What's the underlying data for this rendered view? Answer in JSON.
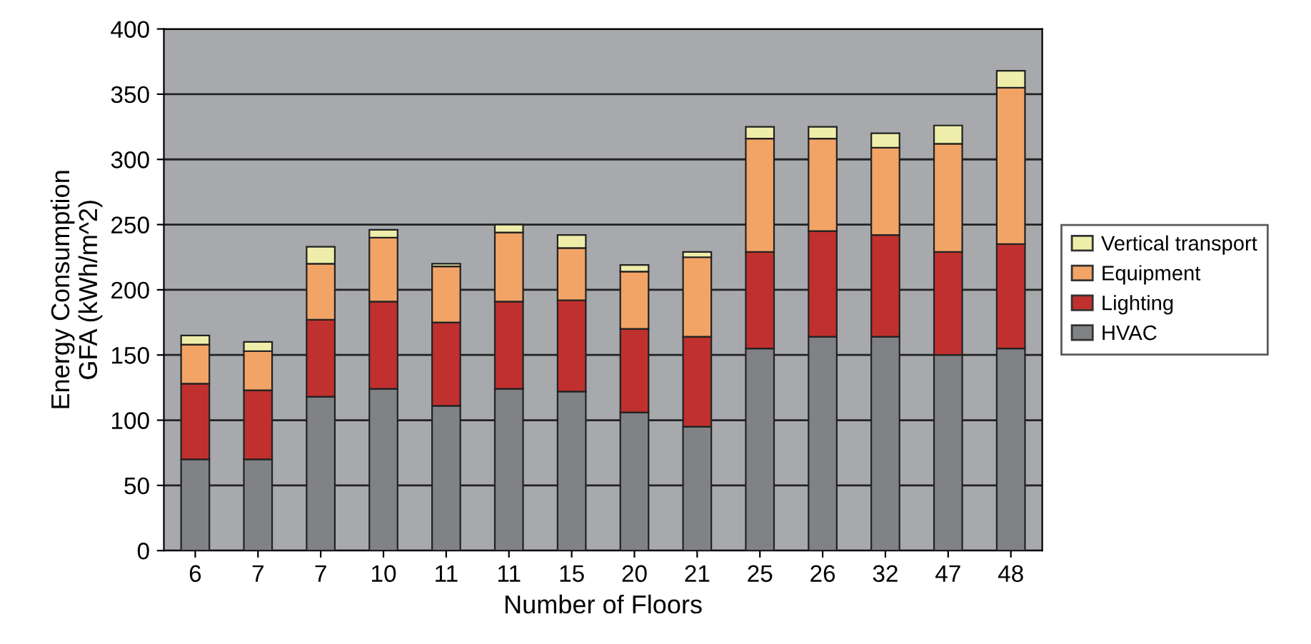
{
  "chart_data": {
    "type": "bar",
    "stacked": true,
    "xlabel": "Number of Floors",
    "ylabel": "Energy Consumption\nGFA (kWh/m^2)",
    "categories": [
      "6",
      "7",
      "7",
      "10",
      "11",
      "11",
      "15",
      "20",
      "21",
      "25",
      "26",
      "32",
      "47",
      "48"
    ],
    "series": [
      {
        "name": "HVAC",
        "color": "#808285",
        "values": [
          70,
          70,
          118,
          124,
          111,
          124,
          122,
          106,
          95,
          155,
          164,
          164,
          150,
          155
        ]
      },
      {
        "name": "Lighting",
        "color": "#c0302e",
        "values": [
          58,
          53,
          59,
          67,
          64,
          67,
          70,
          64,
          69,
          74,
          81,
          78,
          79,
          80
        ]
      },
      {
        "name": "Equipment",
        "color": "#f2a466",
        "values": [
          30,
          30,
          43,
          49,
          43,
          53,
          40,
          44,
          61,
          87,
          71,
          67,
          83,
          120
        ]
      },
      {
        "name": "Vertical transport",
        "color": "#eeeeaa",
        "values": [
          7,
          7,
          13,
          6,
          2,
          6,
          10,
          5,
          4,
          9,
          9,
          11,
          14,
          13
        ]
      }
    ],
    "ylim": [
      0,
      400
    ],
    "yticks": [
      0,
      50,
      100,
      150,
      200,
      250,
      300,
      350,
      400
    ],
    "grid": "y",
    "legend": "right"
  }
}
